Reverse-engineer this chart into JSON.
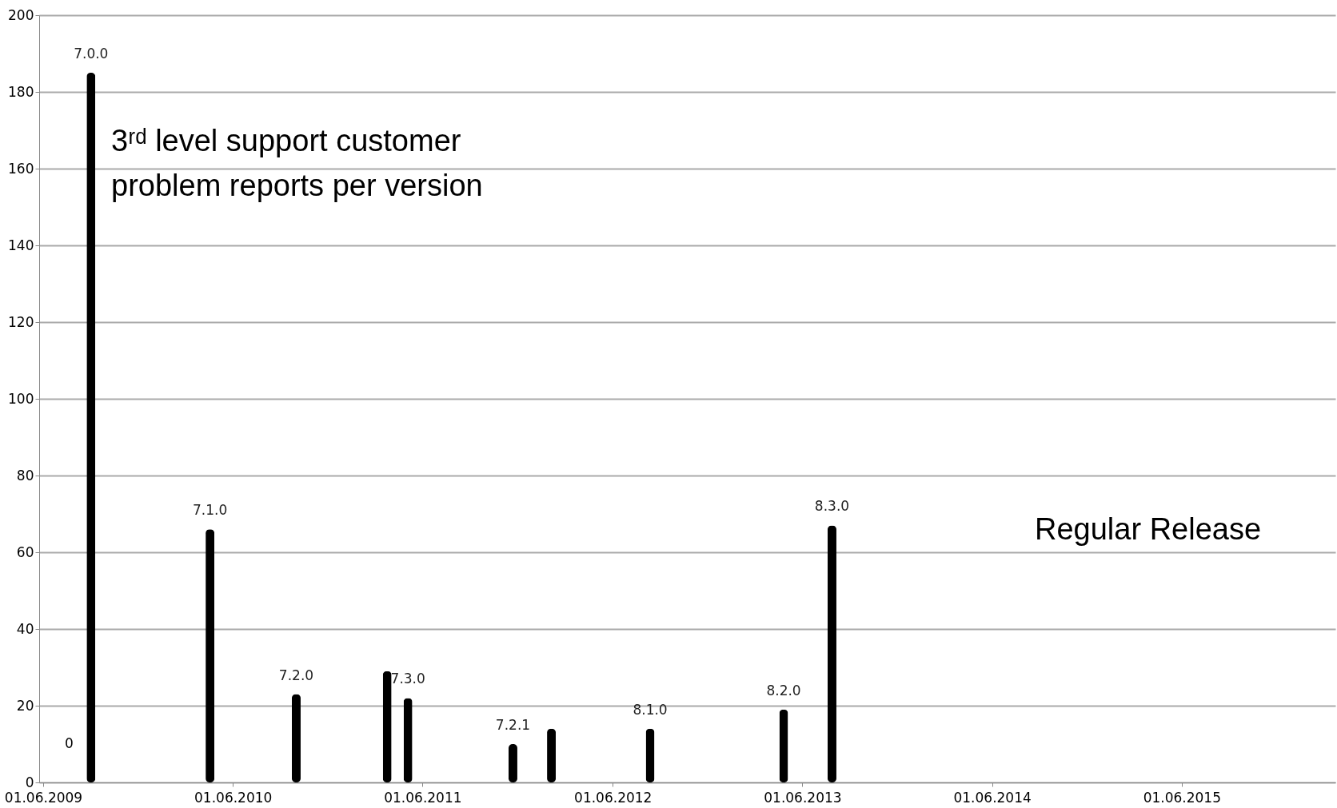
{
  "chart_data": {
    "type": "bar",
    "title": "3ʳᵈ level support customer\nproblem reports per version",
    "x": [
      "2009-09-01",
      "2010-04-18",
      "2010-10-01",
      "2011-03-25",
      "2011-05-04",
      "2011-11-22",
      "2012-02-04",
      "2012-08-12",
      "2013-04-26",
      "2013-07-28"
    ],
    "series": [
      {
        "color": "#000000",
        "values": [
          185,
          66,
          23,
          29,
          22,
          10,
          14,
          14,
          19,
          67
        ],
        "value_labels": [
          "7.0.0",
          "7.1.0",
          "7.2.0",
          null,
          "7.3.0",
          "7.2.1",
          null,
          "8.1.0",
          "8.2.0",
          "8.3.0"
        ]
      }
    ],
    "xlim": [
      "2009-06-01",
      "2016-03-15"
    ],
    "xticks": [
      {
        "value": "2009-06-01",
        "label": "01.06.2009"
      },
      {
        "value": "2010-06-01",
        "label": "01.06.2010"
      },
      {
        "value": "2011-06-01",
        "label": "01.06.2011"
      },
      {
        "value": "2012-06-01",
        "label": "01.06.2012"
      },
      {
        "value": "2013-06-01",
        "label": "01.06.2013"
      },
      {
        "value": "2014-06-01",
        "label": "01.06.2014"
      },
      {
        "value": "2015-06-01",
        "label": "01.06.2015"
      }
    ],
    "ylim": [
      0,
      200
    ],
    "yticks": [
      0,
      20,
      40,
      60,
      80,
      100,
      120,
      140,
      160,
      180,
      200
    ],
    "grid": "y",
    "annotations": [
      "0",
      "Regular Release"
    ]
  }
}
